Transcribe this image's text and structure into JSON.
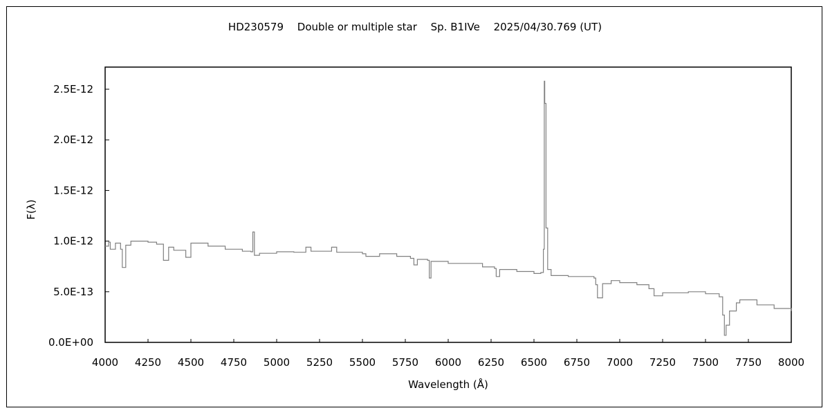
{
  "chart_data": {
    "type": "line",
    "title": "HD230579　 Double or multiple star　 Sp. B1IVe　 2025/04/30.769 (UT)",
    "xlabel": "Wavelength (Å)",
    "ylabel": "F(λ)",
    "xlim": [
      4000,
      8000
    ],
    "ylim": [
      0,
      2.7e-12
    ],
    "grid": false,
    "xticks": [
      "4000",
      "4250",
      "4500",
      "4750",
      "5000",
      "5250",
      "5500",
      "5750",
      "6000",
      "6250",
      "6500",
      "6750",
      "7000",
      "7250",
      "7500",
      "7750",
      "8000"
    ],
    "yticks": [
      "0.0E+00",
      "5.0E-13",
      "1.0E-12",
      "1.5E-12",
      "2.0E-12",
      "2.5E-12"
    ],
    "line_color": "#808080",
    "series": [
      {
        "x": [
          4000,
          4020,
          4030,
          4060,
          4090,
          4100,
          4120,
          4150,
          4200,
          4250,
          4300,
          4340,
          4370,
          4400,
          4450,
          4470,
          4500,
          4550,
          4600,
          4700,
          4800,
          4850,
          4861,
          4870,
          4900,
          5000,
          5100,
          5170,
          5200,
          5300,
          5320,
          5350,
          5500,
          5520,
          5600,
          5700,
          5780,
          5800,
          5820,
          5880,
          5890,
          5900,
          6000,
          6150,
          6200,
          6270,
          6280,
          6300,
          6400,
          6500,
          6540,
          6555,
          6560,
          6563,
          6570,
          6580,
          6600,
          6700,
          6850,
          6860,
          6870,
          6900,
          6950,
          7000,
          7100,
          7170,
          7200,
          7250,
          7300,
          7400,
          7500,
          7580,
          7600,
          7610,
          7620,
          7640,
          7680,
          7700,
          7800,
          7900,
          8000
        ],
        "y": [
          9.5e-13,
          9.9e-13,
          9.2e-13,
          9.8e-13,
          9.2e-13,
          7.4e-13,
          9.6e-13,
          1e-12,
          1e-12,
          9.9e-13,
          9.7e-13,
          8.1e-13,
          9.4e-13,
          9.1e-13,
          9.1e-13,
          8.4e-13,
          9.8e-13,
          9.8e-13,
          9.5e-13,
          9.2e-13,
          9e-13,
          8.95e-13,
          1.09e-12,
          8.6e-13,
          8.8e-13,
          8.95e-13,
          8.9e-13,
          9.4e-13,
          9e-13,
          9e-13,
          9.4e-13,
          8.9e-13,
          8.75e-13,
          8.5e-13,
          8.75e-13,
          8.5e-13,
          8.3e-13,
          7.65e-13,
          8.2e-13,
          8.1e-13,
          6.35e-13,
          8e-13,
          7.8e-13,
          7.8e-13,
          7.45e-13,
          7.3e-13,
          6.5e-13,
          7.2e-13,
          7e-13,
          6.8e-13,
          6.9e-13,
          9.2e-13,
          2.58e-12,
          2.36e-12,
          1.13e-12,
          7.2e-13,
          6.6e-13,
          6.5e-13,
          6.35e-13,
          5.7e-13,
          4.4e-13,
          5.8e-13,
          6.1e-13,
          5.9e-13,
          5.7e-13,
          5.3e-13,
          4.6e-13,
          4.9e-13,
          4.9e-13,
          5e-13,
          4.8e-13,
          4.5e-13,
          2.7e-13,
          7e-14,
          1.7e-13,
          3.1e-13,
          3.9e-13,
          4.2e-13,
          3.7e-13,
          3.35e-13,
          3.1e-13
        ]
      }
    ]
  }
}
